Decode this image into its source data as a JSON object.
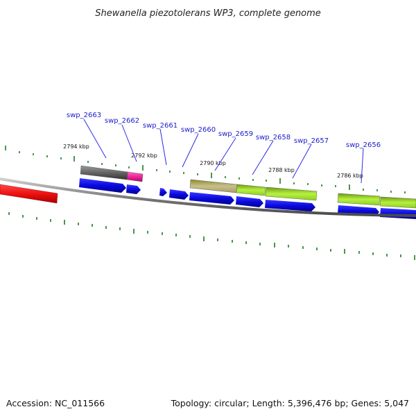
{
  "title": "Shewanella piezotolerans WP3, complete genome",
  "footer": {
    "accession": "Accession: NC_011566",
    "info": "Topology: circular; Length: 5,396,476 bp; Genes: 5,047"
  },
  "colors": {
    "backbone": "#8a8a8a",
    "ticks": "#1f7a1f",
    "forward_genes": "#0a0ae0",
    "label_text": "#1a1acc",
    "label_line": "#2a2ae8",
    "red_feature": "#ee1111",
    "gray_feature": "#666666",
    "pink_feature": "#ee2299",
    "olive_feature": "#b8b070",
    "lime_feature": "#aaee33"
  },
  "kbp_labels": [
    "2794 kbp",
    "2792 kbp",
    "2790 kbp",
    "2788 kbp",
    "2786 kbp"
  ],
  "gene_labels": [
    "swp_2663",
    "swp_2662",
    "swp_2661",
    "swp_2660",
    "swp_2659",
    "swp_2658",
    "swp_2657",
    "swp_2656"
  ]
}
